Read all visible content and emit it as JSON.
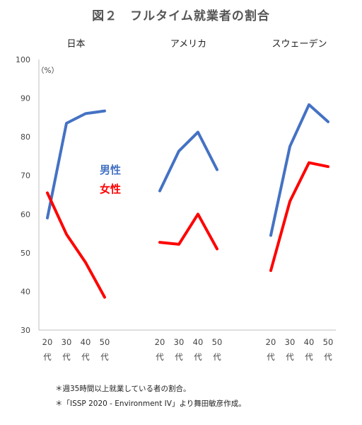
{
  "chart_data": {
    "type": "line",
    "title": "図２　フルタイム就業者の割合",
    "ylabel": "（%）",
    "ylim": [
      30,
      100
    ],
    "yticks": [
      30,
      40,
      50,
      60,
      70,
      80,
      90,
      100
    ],
    "grid": false,
    "x_ages": [
      "20",
      "30",
      "40",
      "50"
    ],
    "x_suffix": "代",
    "legend": [
      "男性",
      "女性"
    ],
    "colors": {
      "男性": "#4472c4",
      "女性": "#ff0000"
    },
    "panels": [
      {
        "name": "日本",
        "series": [
          {
            "name": "男性",
            "values": [
              59,
              83.5,
              86,
              86.7
            ]
          },
          {
            "name": "女性",
            "values": [
              65.5,
              54.8,
              47.5,
              38.5
            ]
          }
        ]
      },
      {
        "name": "アメリカ",
        "series": [
          {
            "name": "男性",
            "values": [
              66,
              76.3,
              81.2,
              71.5
            ]
          },
          {
            "name": "女性",
            "values": [
              52.7,
              52.2,
              60,
              51
            ]
          }
        ]
      },
      {
        "name": "スウェーデン",
        "series": [
          {
            "name": "男性",
            "values": [
              54.5,
              77.5,
              88.3,
              83.9
            ]
          },
          {
            "name": "女性",
            "values": [
              45.4,
              63.3,
              73.3,
              72.3
            ]
          }
        ]
      }
    ]
  },
  "notes": [
    "＊週35時間以上就業している者の割合。",
    "＊「ISSP 2020 - Environment IV」より舞田敏彦作成。"
  ]
}
